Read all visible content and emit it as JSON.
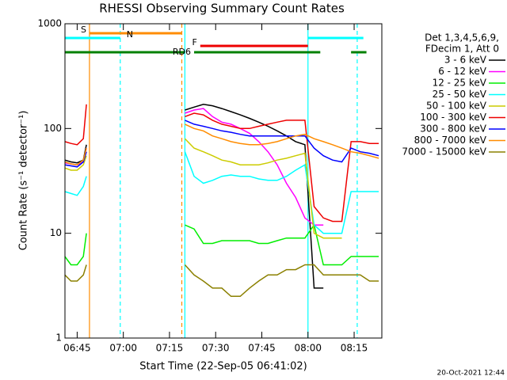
{
  "chart_data": {
    "type": "line",
    "title": "RHESSI Observing Summary Count Rates",
    "xlabel": "Start Time (22-Sep-05 06:41:02)",
    "ylabel": "Count Rate (s⁻¹ detector⁻¹)",
    "timestamp": "20-Oct-2021 12:44",
    "legend_header": [
      "Det 1,3,4,5,6,9,",
      "FDecim 1, Att 0"
    ],
    "log_y": true,
    "xlim": [
      "06:41:02",
      "08:24"
    ],
    "xticks": [
      "06:45",
      "07:00",
      "07:15",
      "07:30",
      "07:45",
      "08:00",
      "08:15"
    ],
    "ylim": [
      1,
      1000
    ],
    "yticks": [
      1,
      10,
      100,
      1000
    ],
    "x": [
      "06:41",
      "06:43",
      "06:45",
      "06:47",
      "06:48",
      "06:49",
      "07:20",
      "07:23",
      "07:26",
      "07:29",
      "07:32",
      "07:35",
      "07:38",
      "07:41",
      "07:44",
      "07:47",
      "07:50",
      "07:53",
      "07:56",
      "07:59",
      "08:02",
      "08:05",
      "08:08",
      "08:11",
      "08:14",
      "08:17",
      "08:20",
      "08:23"
    ],
    "series": [
      {
        "name": "3 - 6 keV",
        "color": "#000000",
        "values": [
          50,
          48,
          47,
          50,
          70,
          null,
          150,
          160,
          170,
          165,
          155,
          145,
          135,
          125,
          115,
          105,
          95,
          85,
          75,
          70,
          3,
          3,
          null,
          null,
          null,
          null,
          null,
          null
        ]
      },
      {
        "name": "6 - 12 keV",
        "color": "#ff00ff",
        "values": [
          47,
          46,
          45,
          48,
          65,
          null,
          140,
          150,
          155,
          130,
          115,
          110,
          100,
          90,
          75,
          60,
          45,
          30,
          22,
          14,
          12,
          12,
          null,
          null,
          null,
          null,
          null,
          null
        ]
      },
      {
        "name": "12 - 25 keV",
        "color": "#00ee00",
        "values": [
          6,
          5,
          5,
          6,
          10,
          null,
          12,
          11,
          8,
          8,
          8.5,
          8.5,
          8.5,
          8.5,
          8,
          8,
          8.5,
          9,
          9,
          9,
          12,
          5,
          5,
          5,
          6,
          6,
          6,
          6
        ]
      },
      {
        "name": "25 - 50 keV",
        "color": "#00ffff",
        "values": [
          25,
          24,
          23,
          28,
          35,
          null,
          60,
          35,
          30,
          32,
          35,
          36,
          35,
          35,
          33,
          32,
          32,
          35,
          40,
          45,
          12,
          10,
          10,
          10,
          25,
          25,
          25,
          25
        ]
      },
      {
        "name": "50 - 100 keV",
        "color": "#cccc00",
        "values": [
          42,
          40,
          40,
          45,
          55,
          null,
          80,
          65,
          60,
          55,
          50,
          48,
          45,
          45,
          45,
          47,
          50,
          52,
          55,
          58,
          10,
          9,
          9,
          9,
          null,
          null,
          null,
          null
        ]
      },
      {
        "name": "100 - 300 keV",
        "color": "#ee0000",
        "values": [
          75,
          72,
          70,
          80,
          170,
          null,
          130,
          140,
          135,
          120,
          110,
          105,
          100,
          100,
          105,
          110,
          115,
          120,
          120,
          120,
          18,
          14,
          13,
          13,
          75,
          75,
          72,
          72
        ]
      },
      {
        "name": "300 - 800 keV",
        "color": "#0000ff",
        "values": [
          45,
          44,
          43,
          48,
          60,
          null,
          120,
          110,
          105,
          100,
          95,
          92,
          88,
          85,
          85,
          85,
          85,
          85,
          85,
          85,
          65,
          55,
          50,
          48,
          65,
          60,
          58,
          55
        ]
      },
      {
        "name": "800 - 7000 keV",
        "color": "#ff8c00",
        "values": [
          48,
          46,
          45,
          50,
          65,
          null,
          110,
          100,
          95,
          85,
          80,
          75,
          72,
          70,
          70,
          72,
          75,
          80,
          85,
          88,
          80,
          75,
          70,
          65,
          60,
          58,
          55,
          52
        ]
      },
      {
        "name": "7000 - 15000 keV",
        "color": "#8b8000",
        "values": [
          4,
          3.5,
          3.5,
          4,
          5,
          null,
          5,
          4,
          3.5,
          3,
          3,
          2.5,
          2.5,
          3,
          3.5,
          4,
          4,
          4.5,
          4.5,
          5,
          5,
          4,
          4,
          4,
          4,
          4,
          3.5,
          3.5
        ]
      }
    ],
    "flags": [
      {
        "label": "S",
        "color": "#ff8c00",
        "segments": [
          [
            "06:49",
            "07:19"
          ]
        ]
      },
      {
        "label": "N",
        "color": "#00ffff",
        "segments": [
          [
            "06:41:02",
            "06:59"
          ],
          [
            "08:00",
            "08:18"
          ]
        ]
      },
      {
        "label": "F",
        "color": "#ee0000",
        "segments": [
          [
            "07:25",
            "08:00"
          ]
        ]
      },
      {
        "label": "RD6",
        "color": "#008000",
        "segments": [
          [
            "06:41:02",
            "07:20"
          ],
          [
            "07:23",
            "08:04"
          ],
          [
            "08:14",
            "08:19"
          ]
        ]
      }
    ],
    "vlines": [
      {
        "x": "06:49",
        "color": "#ff8c00",
        "dashed": false
      },
      {
        "x": "06:59",
        "color": "#00ffff",
        "dashed": true
      },
      {
        "x": "07:19",
        "color": "#ff8c00",
        "dashed": true
      },
      {
        "x": "07:20",
        "color": "#00ffff",
        "dashed": false
      },
      {
        "x": "08:00",
        "color": "#00ffff",
        "dashed": false
      },
      {
        "x": "08:16",
        "color": "#00ffff",
        "dashed": true
      }
    ]
  }
}
